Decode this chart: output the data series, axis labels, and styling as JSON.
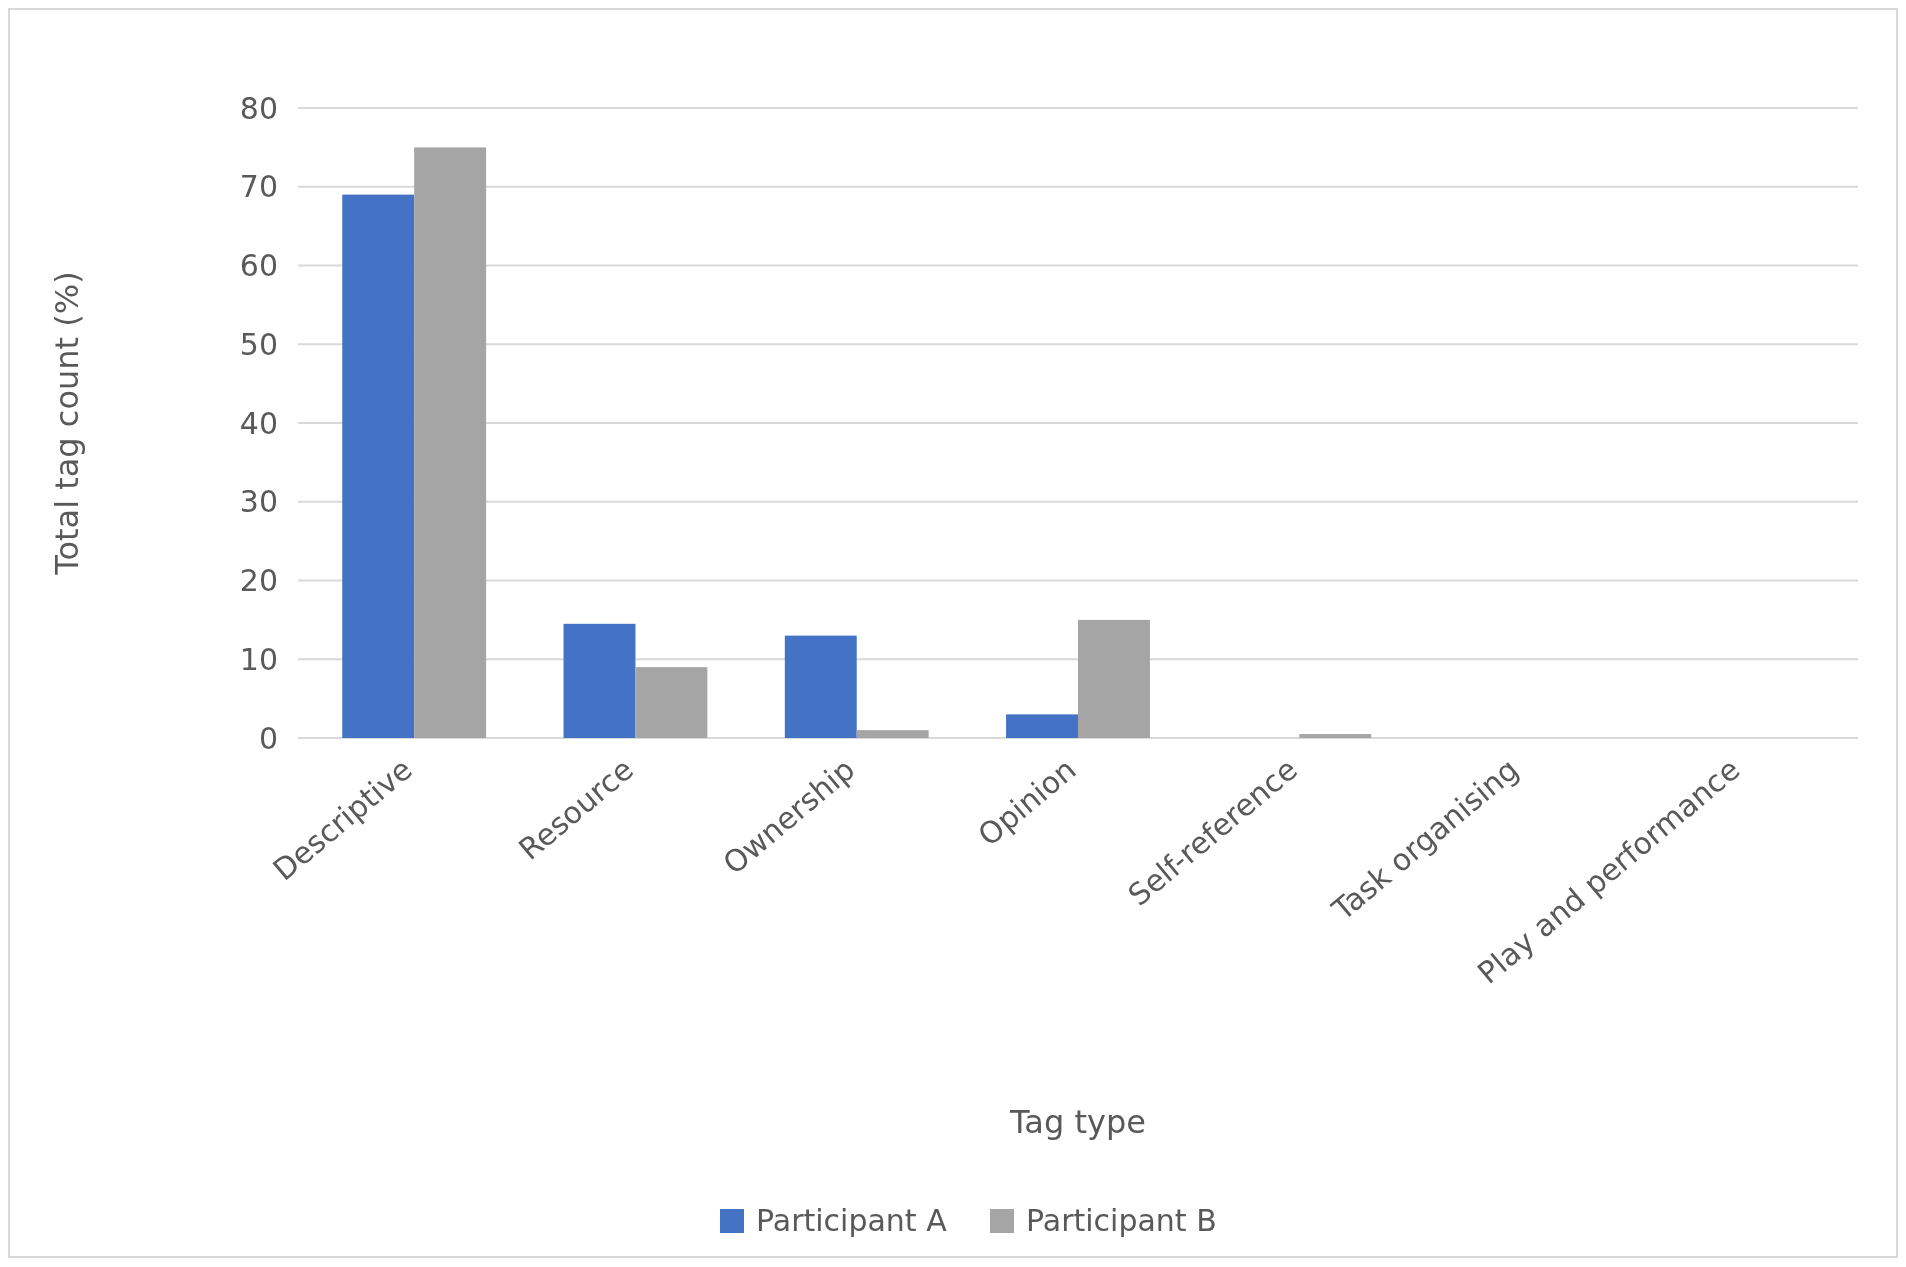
{
  "chart_data": {
    "type": "bar",
    "xlabel": "Tag type",
    "ylabel": "Total tag count (%)",
    "categories": [
      "Descriptive",
      "Resource",
      "Ownership",
      "Opinion",
      "Self-reference",
      "Task organising",
      "Play and performance"
    ],
    "series": [
      {
        "name": "Participant A",
        "color": "#4472c4",
        "values": [
          69,
          14.5,
          13,
          3,
          0,
          0,
          0
        ]
      },
      {
        "name": "Participant B",
        "color": "#a5a5a5",
        "values": [
          75,
          9,
          1,
          15,
          0.5,
          0,
          0
        ]
      }
    ],
    "ylim": [
      0,
      80
    ],
    "yticks": [
      0,
      10,
      20,
      30,
      40,
      50,
      60,
      70,
      80
    ],
    "grid": "y",
    "legend": "bottom"
  }
}
